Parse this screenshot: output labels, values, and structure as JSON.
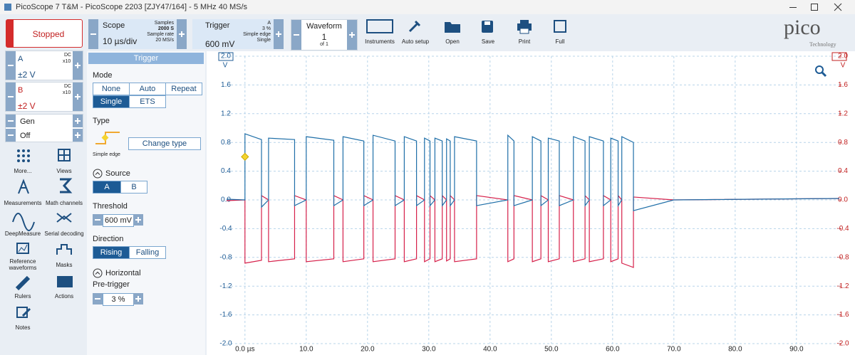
{
  "window": {
    "title": "PicoScope 7 T&M  - PicoScope 2203 [ZJY47/164] - 5 MHz 40 MS/s",
    "logo": "pico",
    "logo_sub": "Technology"
  },
  "toolbar": {
    "run_state": "Stopped",
    "scope": {
      "label": "Scope",
      "timebase": "10 µs/div",
      "samples_label": "Samples",
      "samples": "2000 S",
      "rate_label": "Sample rate",
      "rate": "20 MS/s"
    },
    "trigger": {
      "label": "Trigger",
      "level": "600 mV",
      "channel": "A",
      "pretrigger": "3 %",
      "type": "Simple edge",
      "mode": "Single"
    },
    "waveform": {
      "label": "Waveform",
      "index": "1",
      "count": "of 1"
    },
    "tools": [
      "Instruments",
      "Auto setup",
      "Open",
      "Save",
      "Print",
      "Full"
    ]
  },
  "channels": [
    {
      "coupling": "DC",
      "probe": "x10",
      "range": "±2 V"
    },
    {
      "coupling": "DC",
      "probe": "x10",
      "range": "±2 V"
    }
  ],
  "generator": {
    "name": "Gen",
    "state": "Off"
  },
  "side_tools": [
    "More...",
    "Views",
    "Measurements",
    "Math channels",
    "DeepMeasure",
    "Serial decoding",
    "Reference waveforms",
    "Masks",
    "Rulers",
    "Actions",
    "Notes"
  ],
  "trigger_panel": {
    "title": "Trigger",
    "mode_label": "Mode",
    "modes": [
      "None",
      "Auto",
      "Repeat",
      "Single",
      "ETS"
    ],
    "type_label": "Type",
    "type_name": "Simple edge",
    "change_type": "Change type",
    "source_label": "Source",
    "sources": [
      "A",
      "B"
    ],
    "threshold_label": "Threshold",
    "threshold": "600 mV",
    "direction_label": "Direction",
    "directions": [
      "Rising",
      "Falling"
    ],
    "horizontal_label": "Horizontal",
    "pretrigger_label": "Pre-trigger",
    "pretrigger": "3 %"
  },
  "chart_data": {
    "type": "line",
    "x": [
      -3,
      0,
      0,
      2.7,
      2.7,
      3.85,
      3.85,
      8.1,
      8.1,
      10.0,
      10.0,
      14.5,
      14.5,
      16.0,
      16.0,
      19.4,
      19.4,
      20.9,
      20.9,
      24.5,
      24.5,
      26.0,
      26.0,
      28.0,
      28.0,
      29.3,
      29.3,
      30.2,
      30.2,
      31.0,
      31.0,
      32.2,
      32.2,
      32.9,
      32.9,
      33.5,
      33.5,
      34.2,
      34.2,
      37.8,
      37.8,
      42.9,
      42.9,
      43.9,
      43.9,
      46.9,
      46.9,
      48.3,
      48.3,
      49.5,
      49.5,
      51.3,
      51.3,
      53.6,
      53.6,
      55.5,
      55.5,
      56.2,
      56.2,
      58.5,
      58.5,
      59.7,
      59.7,
      60.9,
      60.9,
      61.5,
      61.5,
      63.4,
      63.4,
      70,
      97
    ],
    "series": [
      {
        "name": "A",
        "color": "#1f6fa8",
        "values": [
          0.01,
          0.0,
          0.92,
          0.84,
          -0.1,
          0.0,
          0.86,
          0.84,
          -0.08,
          0.0,
          0.88,
          0.83,
          -0.08,
          0.0,
          0.88,
          0.82,
          -0.08,
          0.0,
          0.9,
          0.82,
          -0.08,
          0.0,
          0.88,
          0.82,
          -0.08,
          0.0,
          0.86,
          0.82,
          -0.08,
          0.0,
          0.86,
          0.82,
          -0.08,
          0.0,
          0.85,
          0.82,
          -0.08,
          0.0,
          0.88,
          0.82,
          -0.08,
          0.0,
          0.9,
          0.82,
          -0.08,
          0.0,
          0.88,
          0.82,
          -0.08,
          0.0,
          0.86,
          0.82,
          -0.08,
          0.0,
          0.88,
          0.82,
          -0.08,
          0.0,
          0.88,
          0.82,
          -0.08,
          0.0,
          0.86,
          0.82,
          -0.08,
          0.0,
          0.88,
          0.8,
          -0.15,
          0.0,
          0.02
        ]
      },
      {
        "name": "B",
        "color": "#d6204a",
        "axis": "y2",
        "values": [
          -0.01,
          0.0,
          -0.88,
          -0.84,
          0.06,
          0.0,
          -0.86,
          -0.82,
          0.06,
          0.0,
          -0.86,
          -0.82,
          0.06,
          0.0,
          -0.86,
          -0.82,
          0.06,
          0.0,
          -0.86,
          -0.82,
          0.06,
          0.0,
          -0.86,
          -0.82,
          0.06,
          0.0,
          -0.86,
          -0.82,
          0.06,
          0.0,
          -0.86,
          -0.82,
          0.06,
          0.0,
          -0.85,
          -0.82,
          0.06,
          0.0,
          -0.86,
          -0.82,
          0.06,
          0.0,
          -0.86,
          -0.82,
          0.06,
          0.0,
          -0.86,
          -0.82,
          0.06,
          0.0,
          -0.86,
          -0.82,
          0.06,
          0.0,
          -0.86,
          -0.82,
          0.06,
          0.0,
          -0.86,
          -0.82,
          0.06,
          0.0,
          -0.86,
          -0.82,
          0.06,
          0.0,
          -0.88,
          -0.94,
          0.04,
          0.0,
          0.02
        ]
      }
    ],
    "xlim": [
      -3,
      97
    ],
    "xticks": [
      {
        "value": 0,
        "label": "0.0 µs"
      },
      {
        "value": 10,
        "label": "10.0"
      },
      {
        "value": 20,
        "label": "20.0"
      },
      {
        "value": 30,
        "label": "30.0"
      },
      {
        "value": 40,
        "label": "40.0"
      },
      {
        "value": 50,
        "label": "50.0"
      },
      {
        "value": 60,
        "label": "60.0"
      },
      {
        "value": 70,
        "label": "70.0"
      },
      {
        "value": 80,
        "label": "80.0"
      },
      {
        "value": 90,
        "label": "90.0"
      }
    ],
    "ylim": [
      -2,
      2
    ],
    "yticks": [
      {
        "value": 2,
        "label": "2.0"
      },
      {
        "value": 1.6,
        "label": "1.6"
      },
      {
        "value": 1.2,
        "label": "1.2"
      },
      {
        "value": 0.8,
        "label": "0.8"
      },
      {
        "value": 0.4,
        "label": "0.4"
      },
      {
        "value": 0,
        "label": "0.0"
      },
      {
        "value": -0.4,
        "label": "-0.4"
      },
      {
        "value": -0.8,
        "label": "-0.8"
      },
      {
        "value": -1.2,
        "label": "-1.2"
      },
      {
        "value": -1.6,
        "label": "-1.6"
      },
      {
        "value": -2,
        "label": "-2.0"
      }
    ],
    "y2lim": [
      -2,
      2
    ],
    "y2ticks": [
      {
        "value": 2,
        "label": "2.0"
      },
      {
        "value": 1.6,
        "label": "1.6"
      },
      {
        "value": 1.2,
        "label": "1.2"
      },
      {
        "value": 0.8,
        "label": "0.8"
      },
      {
        "value": 0.4,
        "label": "0.4"
      },
      {
        "value": 0,
        "label": "0.0"
      },
      {
        "value": -0.4,
        "label": "-0.4"
      },
      {
        "value": -0.8,
        "label": "-0.8"
      },
      {
        "value": -1.2,
        "label": "-1.2"
      },
      {
        "value": -1.6,
        "label": "-1.6"
      },
      {
        "value": -2,
        "label": "-2.0"
      }
    ],
    "y_unit": "V",
    "y2_unit": "V",
    "grid": true,
    "trigger_time": 0,
    "trigger_level": 0.6
  }
}
